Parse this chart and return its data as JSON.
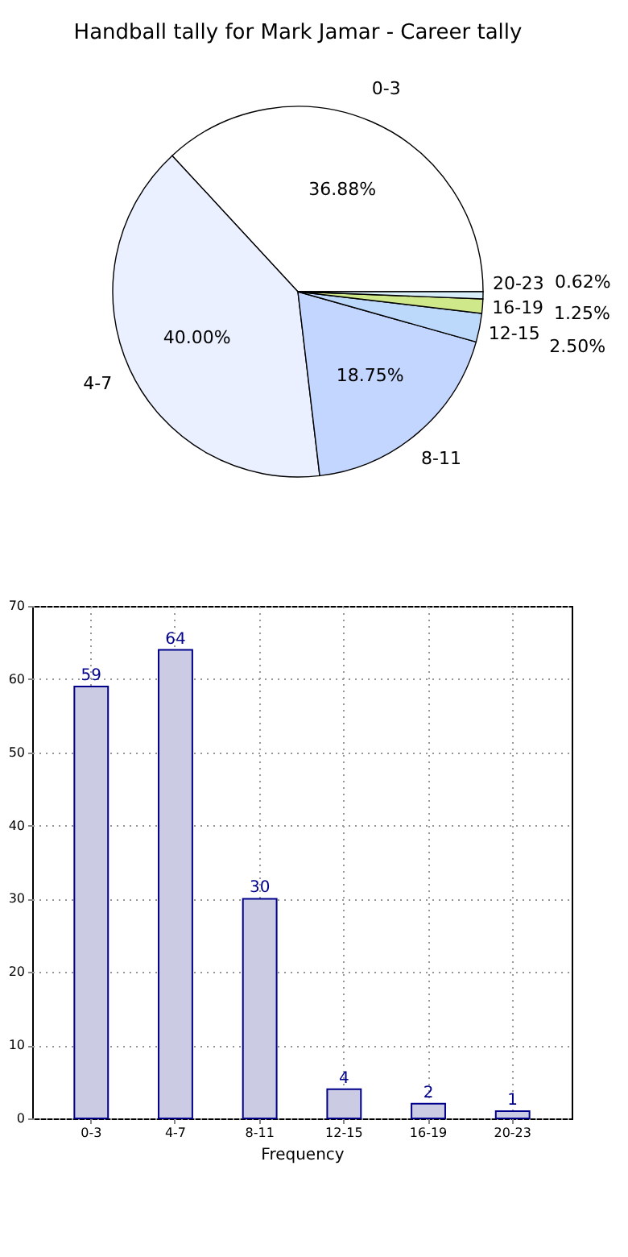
{
  "chart_data": [
    {
      "type": "pie",
      "title": "Handball tally for Mark Jamar - Career tally",
      "categories": [
        "0-3",
        "4-7",
        "8-11",
        "12-15",
        "16-19",
        "20-23"
      ],
      "values": [
        36.88,
        40.0,
        18.75,
        2.5,
        1.25,
        0.62
      ],
      "value_labels": [
        "36.88%",
        "40.00%",
        "18.75%",
        "2.50%",
        "1.25%",
        "0.62%"
      ],
      "colors": [
        "#ffffff",
        "#eaf0ff",
        "#c2d6ff",
        "#bcd9fc",
        "#cfe88a",
        "#d8eef8"
      ]
    },
    {
      "type": "bar",
      "xlabel": "Frequency",
      "categories": [
        "0-3",
        "4-7",
        "8-11",
        "12-15",
        "16-19",
        "20-23"
      ],
      "values": [
        59,
        64,
        30,
        4,
        2,
        1
      ],
      "color": "#cbcbe3",
      "ylim": [
        0,
        70
      ],
      "yticks": [
        0,
        10,
        20,
        30,
        40,
        50,
        60,
        70
      ],
      "grid": true,
      "data_labels": true
    }
  ]
}
